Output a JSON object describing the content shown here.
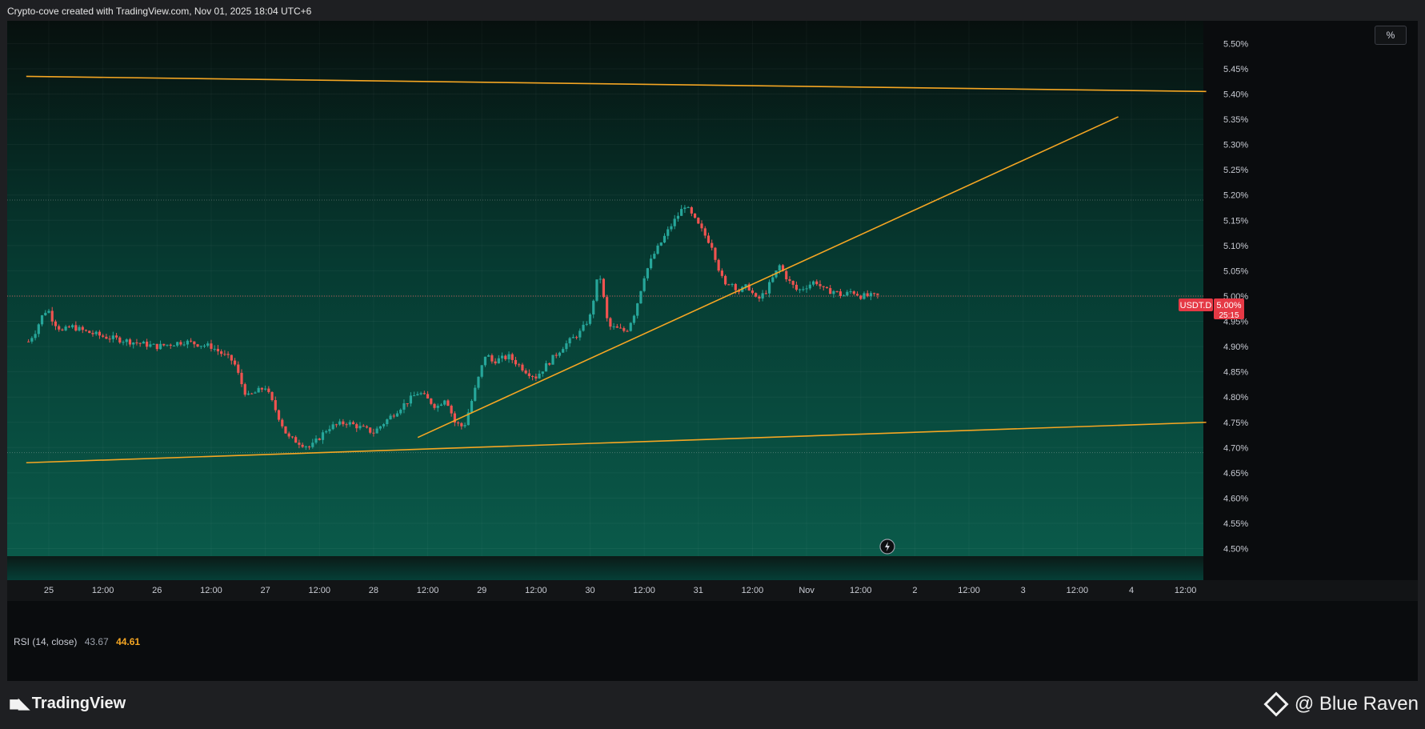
{
  "header": {
    "attribution": "Crypto-cove created with TradingView.com, Nov 01, 2025 18:04 UTC+6"
  },
  "toolbar": {
    "scale_label": "%"
  },
  "rsi": {
    "label": "RSI (14, close)",
    "value1": "43.67",
    "value2": "44.61"
  },
  "price_label": {
    "symbol": "USDT.D",
    "price": "5.00%",
    "countdown": "25:15"
  },
  "footer": {
    "logo_text": "TradingView",
    "watermark_text": "@ Blue Raven"
  },
  "colors": {
    "up": "#26a69a",
    "down": "#ef5350",
    "trendline": "#f5a623",
    "background_top": "#07100e",
    "background_bottom": "#0a5a4a",
    "price_tag": "#e53945"
  },
  "chart_data": {
    "type": "candlestick",
    "title": "",
    "symbol": "USDT.D",
    "y_axis": {
      "unit": "%",
      "range": [
        4.485,
        5.545
      ],
      "ticks": [
        "5.50%",
        "5.45%",
        "5.40%",
        "5.35%",
        "5.30%",
        "5.25%",
        "5.20%",
        "5.15%",
        "5.10%",
        "5.05%",
        "5.00%",
        "4.95%",
        "4.90%",
        "4.85%",
        "4.80%",
        "4.75%",
        "4.70%",
        "4.65%",
        "4.60%",
        "4.55%",
        "4.50%"
      ]
    },
    "x_axis": {
      "labels": [
        "25",
        "12:00",
        "26",
        "12:00",
        "27",
        "12:00",
        "28",
        "12:00",
        "29",
        "12:00",
        "30",
        "12:00",
        "31",
        "12:00",
        "Nov",
        "12:00",
        "2",
        "12:00",
        "3",
        "12:00",
        "4",
        "12:00"
      ],
      "label_times_hours": [
        0,
        12,
        24,
        36,
        48,
        60,
        72,
        84,
        96,
        108,
        120,
        132,
        144,
        156,
        168,
        180,
        192,
        204,
        216,
        228,
        240,
        252
      ]
    },
    "price_path": {
      "time_hours": [
        -4.5,
        -3,
        -1,
        0,
        1,
        3,
        5,
        8,
        12,
        18,
        24,
        30,
        36,
        41,
        43,
        44,
        46,
        48,
        53,
        58,
        62,
        66,
        72,
        78,
        82,
        86,
        88,
        90,
        92,
        96,
        97,
        98,
        102,
        106,
        108,
        110,
        114,
        118,
        120,
        122,
        124,
        128,
        130,
        132,
        134,
        138,
        141,
        144,
        147,
        149,
        150,
        151,
        153,
        155,
        157,
        159,
        162,
        164,
        166,
        168,
        170,
        172,
        174,
        176,
        178,
        180,
        182,
        184
      ],
      "close": [
        4.91,
        4.93,
        4.97,
        4.97,
        4.95,
        4.93,
        4.94,
        4.93,
        4.92,
        4.91,
        4.9,
        4.91,
        4.9,
        4.87,
        4.82,
        4.8,
        4.81,
        4.82,
        4.72,
        4.7,
        4.74,
        4.75,
        4.73,
        4.78,
        4.81,
        4.78,
        4.8,
        4.75,
        4.74,
        4.86,
        4.89,
        4.87,
        4.88,
        4.85,
        4.84,
        4.86,
        4.9,
        4.93,
        4.96,
        5.05,
        4.94,
        4.93,
        4.97,
        5.04,
        5.08,
        5.14,
        5.18,
        5.14,
        5.1,
        5.04,
        5.02,
        5.03,
        5.01,
        5.02,
        4.99,
        5.01,
        5.06,
        5.03,
        5.01,
        5.02,
        5.03,
        5.01,
        5.01,
        5.0,
        5.01,
        5.0,
        5.0,
        5.0
      ]
    },
    "last_candle_time_hours": 184,
    "dotted_levels": [
      5.19,
      5.0,
      4.69
    ],
    "trendlines": [
      {
        "t1": -5,
        "p1": 5.435,
        "t2": 256.6,
        "p2": 5.405
      },
      {
        "t1": -5,
        "p1": 4.67,
        "t2": 256.6,
        "p2": 4.75
      },
      {
        "t1": 81.8,
        "p1": 4.72,
        "t2": 237.1,
        "p2": 5.355
      }
    ]
  }
}
